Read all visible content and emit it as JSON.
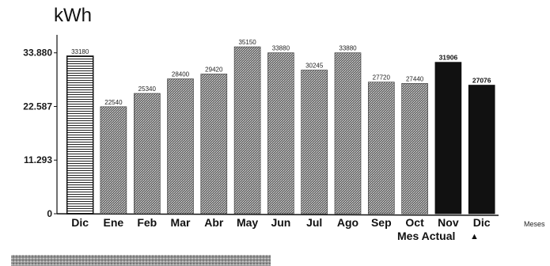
{
  "chart_data": {
    "type": "bar",
    "ylabel": "kWh",
    "xlabel": "Meses",
    "yticks": [
      "0",
      "11.293",
      "22.587",
      "33.880"
    ],
    "ytick_values": [
      0,
      11293,
      22587,
      33880
    ],
    "ylim": [
      0,
      40000
    ],
    "categories": [
      "Dic",
      "Ene",
      "Feb",
      "Mar",
      "Abr",
      "May",
      "Jun",
      "Jul",
      "Ago",
      "Sep",
      "Oct",
      "Nov",
      "Dic"
    ],
    "values": [
      33180,
      22540,
      25340,
      28400,
      29420,
      35150,
      33880,
      30245,
      33880,
      27720,
      27440,
      31906,
      27076
    ],
    "data_labels": [
      "33180",
      "22540",
      "25340",
      "28400",
      "29420",
      "35150",
      "33880",
      "30245",
      "33880",
      "27720",
      "27440",
      "31906",
      "27076"
    ],
    "bar_styles": [
      "striped",
      "dotted",
      "dotted",
      "dotted",
      "dotted",
      "dotted",
      "dotted",
      "dotted",
      "dotted",
      "dotted",
      "dotted",
      "solid",
      "solid"
    ],
    "legend": {
      "label": "Mes Actual",
      "marker": "▲",
      "placement": "bottom-right"
    },
    "grid": false,
    "colors": {
      "bar_dark": "#111111",
      "bar_dotted_bg": "#6e6e6e",
      "bar_dotted_fg": "#cfcfcf",
      "axis": "#111111"
    }
  }
}
